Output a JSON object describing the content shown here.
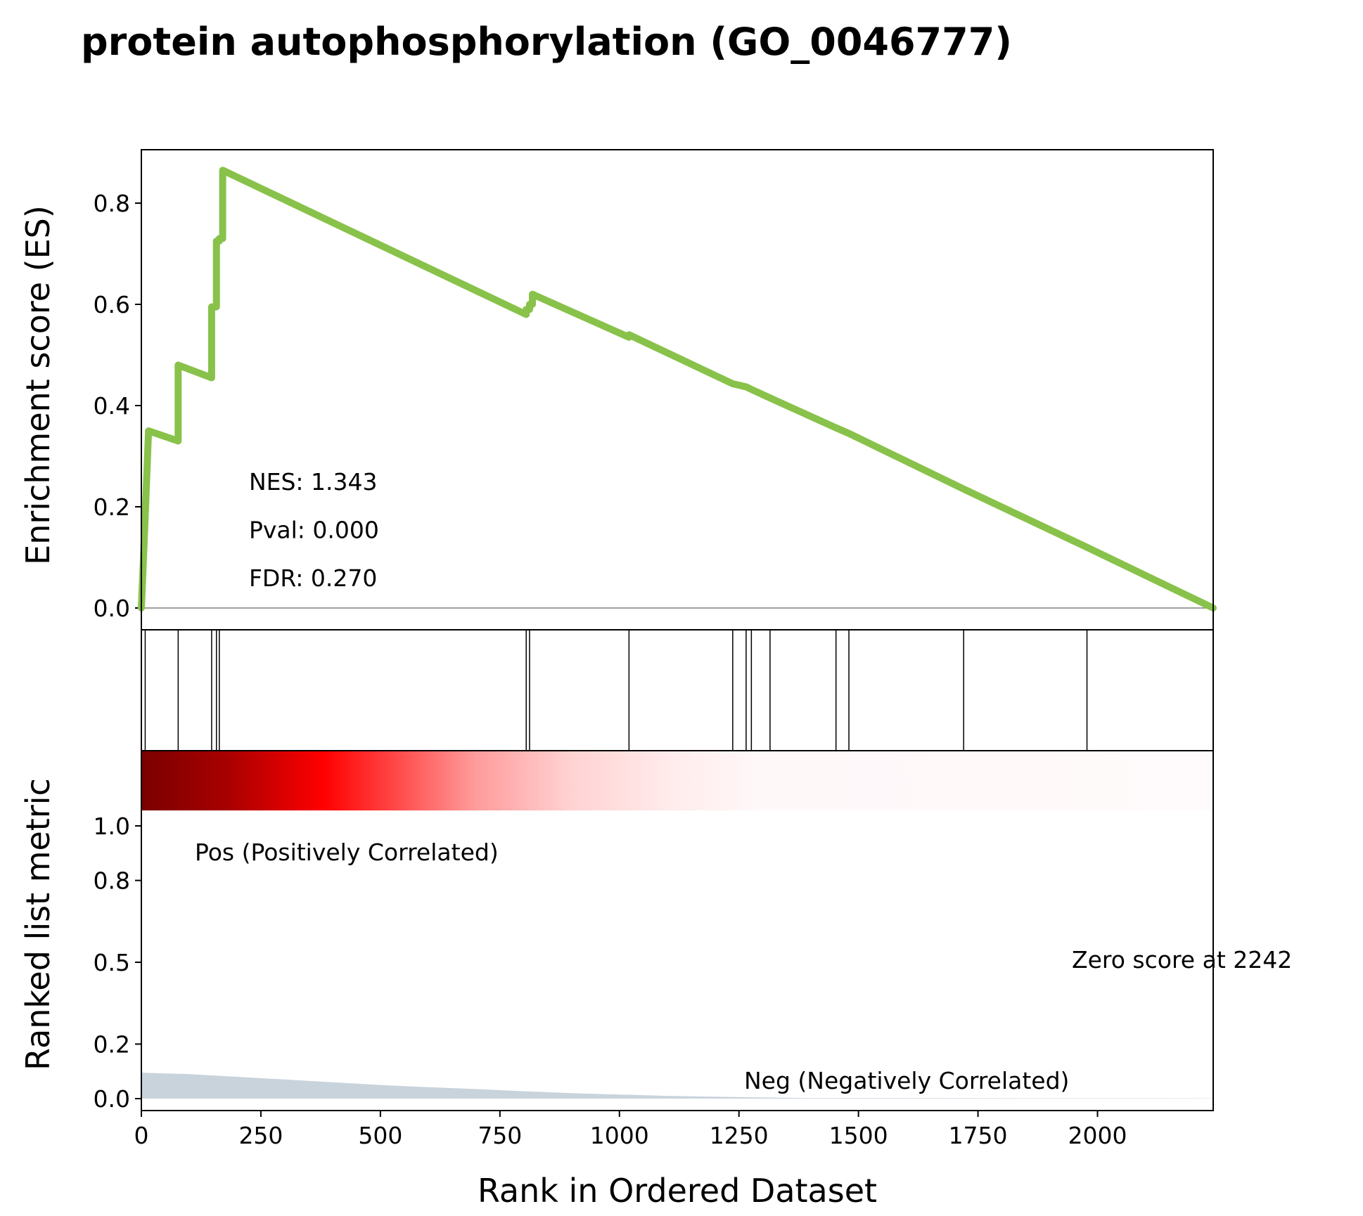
{
  "title": "protein autophosphorylation (GO_0046777)",
  "chart_data": {
    "type": "line",
    "title": "protein autophosphorylation (GO_0046777)",
    "xlabel": "Rank in Ordered Dataset",
    "xlim": [
      0,
      2242
    ],
    "xticks": [
      "0",
      "250",
      "500",
      "750",
      "1000",
      "1250",
      "1500",
      "1750",
      "2000"
    ],
    "es_panel": {
      "ylabel": "Enrichment score (ES)",
      "ylim": [
        -0.04,
        0.9
      ],
      "yticks": [
        "0.0",
        "0.2",
        "0.4",
        "0.6",
        "0.8"
      ],
      "line_color": "#88c24a",
      "series": [
        {
          "x": [
            0,
            8,
            8,
            15,
            15,
            77,
            77,
            147,
            147,
            157,
            157,
            163,
            163,
            170,
            170,
            805,
            805,
            812,
            812,
            818,
            818,
            1020,
            1020,
            1237,
            1237,
            1265,
            1265,
            1276,
            1276,
            1315,
            1315,
            1453,
            1453,
            1480,
            1480,
            1720,
            1720,
            1978,
            1978,
            2242
          ],
          "y": [
            0.0,
            0.18,
            0.18,
            0.35,
            0.35,
            0.33,
            0.48,
            0.455,
            0.595,
            0.595,
            0.725,
            0.725,
            0.73,
            0.73,
            0.865,
            0.58,
            0.59,
            0.59,
            0.6,
            0.6,
            0.62,
            0.535,
            0.54,
            0.443,
            0.443,
            0.437,
            0.437,
            0.432,
            0.432,
            0.415,
            0.415,
            0.356,
            0.356,
            0.345,
            0.345,
            0.235,
            0.235,
            0.12,
            0.12,
            0.0
          ]
        }
      ],
      "annotations": [
        {
          "label": "NES: 1.343",
          "x": 225,
          "y": 0.25
        },
        {
          "label": "Pval: 0.000",
          "x": 225,
          "y": 0.155
        },
        {
          "label": "FDR: 0.270",
          "x": 225,
          "y": 0.06
        }
      ]
    },
    "hits_panel": {
      "hit_ranks": [
        8,
        77,
        147,
        157,
        163,
        805,
        812,
        1020,
        1237,
        1265,
        1276,
        1315,
        1453,
        1480,
        1720,
        1978
      ]
    },
    "rank_panel": {
      "ylabel": "Ranked list metric",
      "yticks": [
        "0.0",
        "0.2",
        "0.5",
        "0.8",
        "1.0"
      ],
      "ytick_values": [
        0.0,
        0.2,
        0.5,
        0.8,
        1.0
      ],
      "ylim": [
        -0.05,
        1.2
      ],
      "fill_color": "#c9d3dc",
      "metric_curve": {
        "x": [
          0,
          100,
          200,
          300,
          400,
          500,
          600,
          700,
          800,
          900,
          1000,
          1100,
          1200,
          1300,
          1400,
          2242
        ],
        "y": [
          0.095,
          0.09,
          0.08,
          0.07,
          0.06,
          0.05,
          0.042,
          0.035,
          0.027,
          0.02,
          0.015,
          0.01,
          0.007,
          0.004,
          0.002,
          0.001
        ]
      },
      "pos_label": "Pos (Positively Correlated)",
      "pos_color": "#ff0000",
      "neg_label": "Neg (Negatively Correlated)",
      "neg_color": "#0000ff",
      "zero_label": "Zero score at 2242",
      "heat_colors": [
        "#7a0000",
        "#b00000",
        "#ff0000",
        "#ff8080",
        "#ffd0d0",
        "#fff0f0",
        "#fffafb"
      ]
    }
  }
}
